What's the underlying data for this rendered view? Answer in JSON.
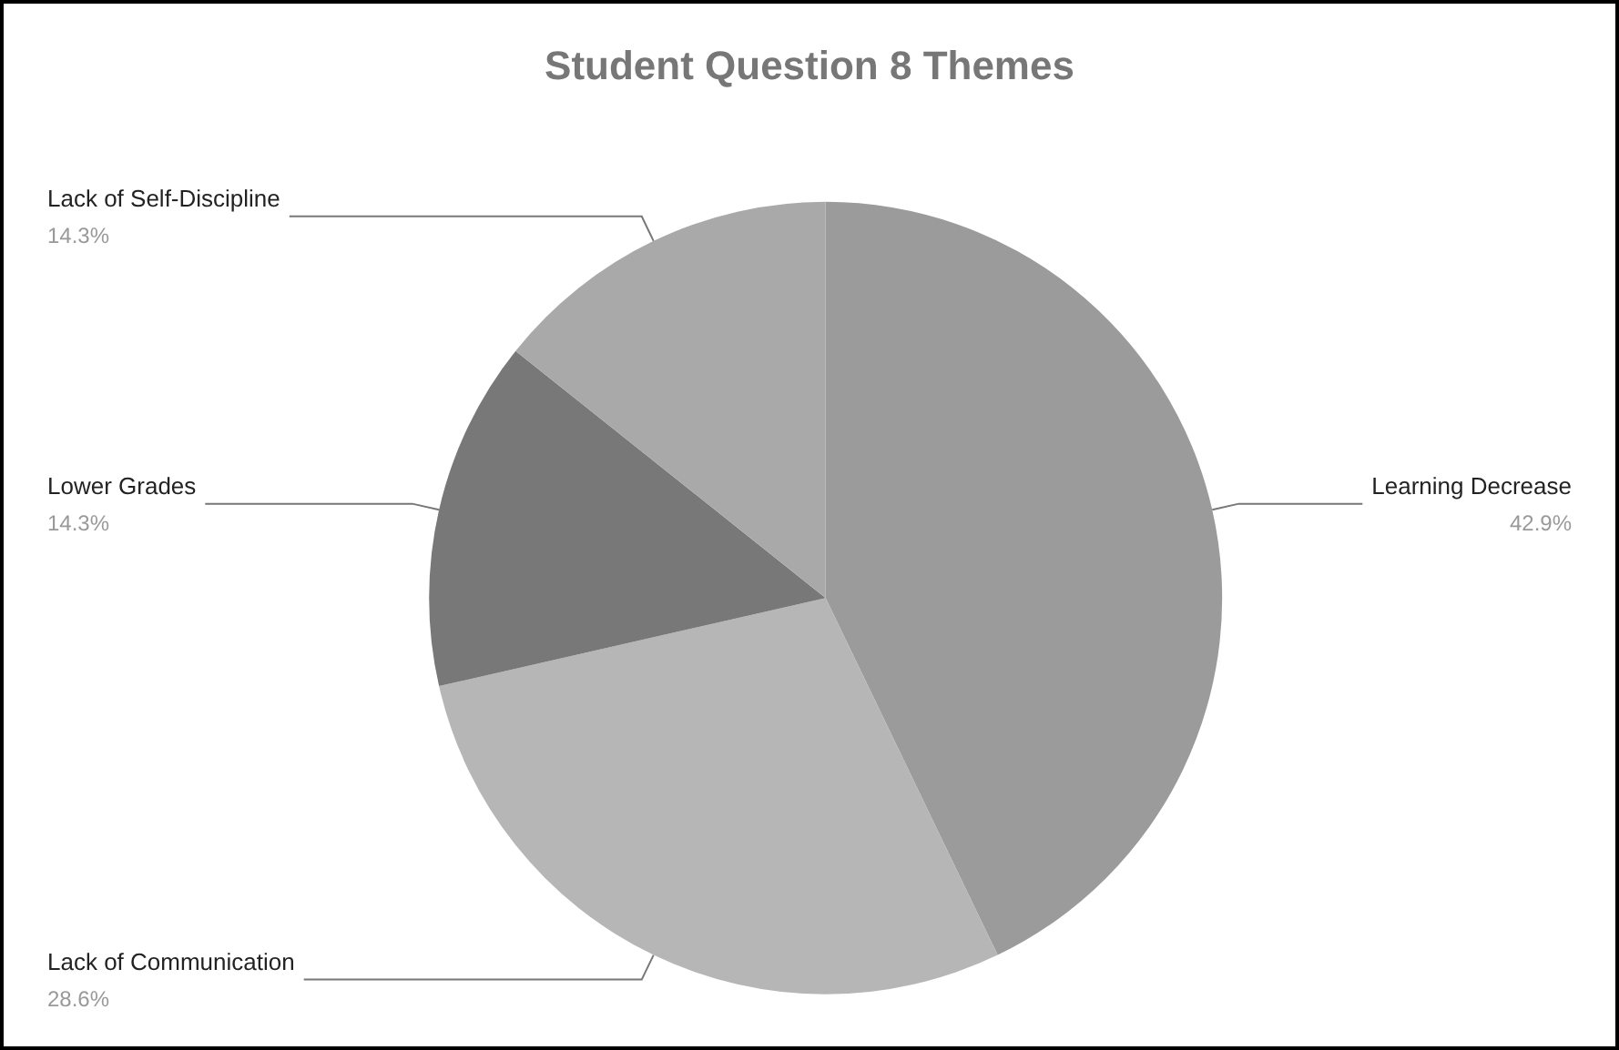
{
  "chart_data": {
    "type": "pie",
    "title": "Student Question 8 Themes",
    "categories": [
      "Learning Decrease",
      "Lack of Communication",
      "Lower Grades",
      "Lack of Self-Discipline"
    ],
    "values": [
      42.9,
      28.6,
      14.3,
      14.3
    ],
    "value_labels": [
      "42.9%",
      "28.6%",
      "14.3%",
      "14.3%"
    ],
    "colors": [
      "#9b9b9b",
      "#b6b6b6",
      "#787878",
      "#a9a9a9"
    ],
    "legend": false
  }
}
